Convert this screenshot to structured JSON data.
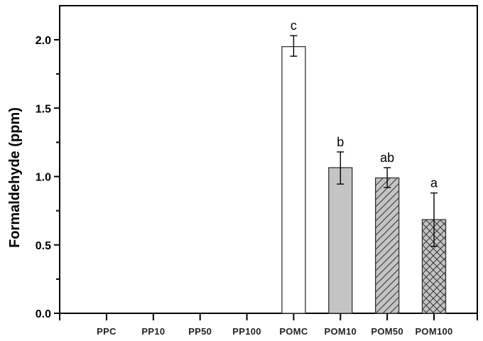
{
  "chart_data": {
    "type": "bar",
    "title": "",
    "xlabel": "",
    "ylabel": "Formaldehyde (ppm)",
    "ylim": [
      0,
      2.2
    ],
    "yticks": [
      0.0,
      0.5,
      1.0,
      1.5,
      2.0
    ],
    "ytick_labels": [
      "0.0",
      "0.5",
      "1.0",
      "1.5",
      "2.0"
    ],
    "grid": false,
    "legend": null,
    "categories": [
      "PPC",
      "PP10",
      "PP50",
      "PP100",
      "POMC",
      "POM10",
      "POM50",
      "POM100"
    ],
    "values": [
      0,
      0,
      0,
      0,
      1.95,
      1.065,
      0.99,
      0.685
    ],
    "error_low": [
      null,
      null,
      null,
      null,
      1.88,
      0.945,
      0.92,
      0.49
    ],
    "error_high": [
      null,
      null,
      null,
      null,
      2.03,
      1.18,
      1.065,
      0.88
    ],
    "annotations": [
      "",
      "",
      "",
      "",
      "c",
      "b",
      "ab",
      "a"
    ],
    "bar_styles": [
      "none",
      "none",
      "none",
      "none",
      "white",
      "gray-solid",
      "gray-diagonal-hatch",
      "gray-crosshatch"
    ]
  },
  "colors": {
    "axis": "#000000",
    "bar_outline": "#333333",
    "bar_white": "#ffffff",
    "bar_gray": "#c4c4c4",
    "hatch": "#333333"
  }
}
